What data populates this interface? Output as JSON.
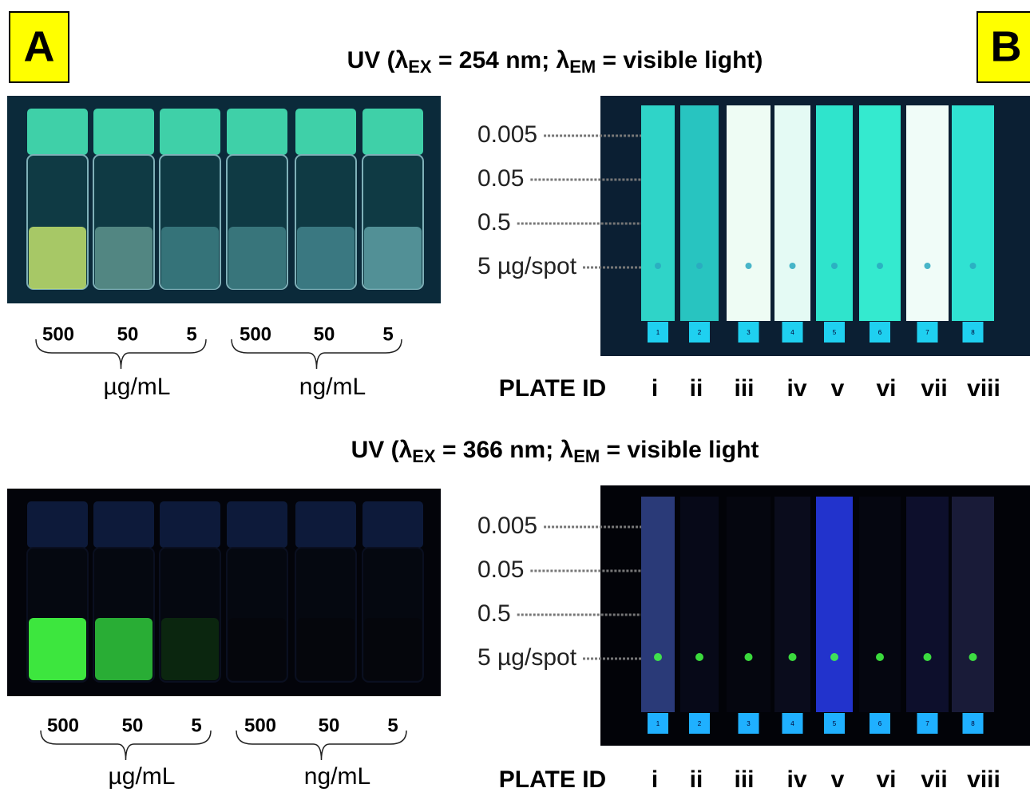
{
  "panel_labels": [
    "A",
    "B"
  ],
  "rows": [
    {
      "title_parts": [
        "UV (λ",
        "EX",
        " = 254 nm; λ",
        "EM",
        " = visible light)"
      ],
      "vial_concentrations": [
        "500",
        "50",
        "5",
        "500",
        "50",
        "5"
      ],
      "vial_units": [
        "µg/mL",
        "ng/mL"
      ],
      "spot_levels": [
        "0.005",
        "0.05",
        "0.5",
        "5 µg/spot"
      ],
      "plate_id_label": "PLATE ID",
      "plate_ids": [
        "i",
        "ii",
        "iii",
        "iv",
        "v",
        "vi",
        "vii",
        "viii"
      ],
      "plate_tags": [
        "1",
        "2",
        "3",
        "4",
        "5",
        "6",
        "7",
        "8"
      ]
    },
    {
      "title_parts": [
        "UV (λ",
        "EX",
        " = 366 nm; λ",
        "EM",
        " = visible light"
      ],
      "vial_concentrations": [
        "500",
        "50",
        "5",
        "500",
        "50",
        "5"
      ],
      "vial_units": [
        "µg/mL",
        "ng/mL"
      ],
      "spot_levels": [
        "0.005",
        "0.05",
        "0.5",
        "5 µg/spot"
      ],
      "plate_id_label": "PLATE ID",
      "plate_ids": [
        "i",
        "ii",
        "iii",
        "iv",
        "v",
        "vi",
        "vii",
        "viii"
      ],
      "plate_tags": [
        "1",
        "2",
        "3",
        "4",
        "5",
        "6",
        "7",
        "8"
      ]
    }
  ]
}
